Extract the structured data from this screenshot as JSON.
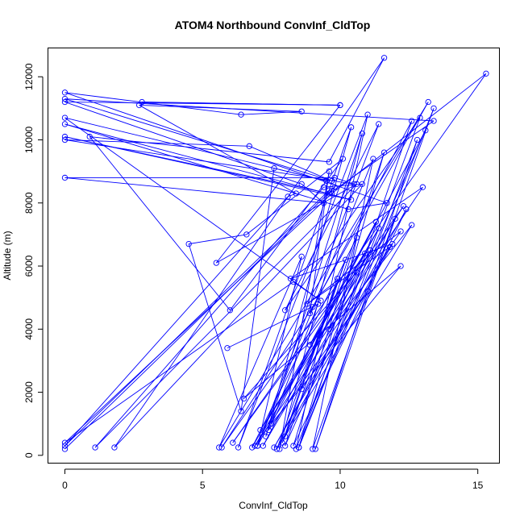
{
  "chart_data": {
    "type": "scatter",
    "title": "ATOM4 Northbound ConvInf_CldTop",
    "xlabel": "ConvInf_CldTop",
    "ylabel": "Altitude (m)",
    "xlim": [
      -0.6,
      15.8
    ],
    "ylim": [
      -260,
      12900
    ],
    "x_ticks": [
      0,
      5,
      10,
      15
    ],
    "y_ticks": [
      0,
      2000,
      4000,
      6000,
      8000,
      10000,
      12000
    ],
    "grid": false,
    "legend": "none",
    "color": "#0000ff",
    "marker": "open-circle",
    "connected_by_lines": true,
    "series": [
      {
        "x": [
          0.0,
          9.8,
          9.6,
          0.0,
          8.1,
          8.4,
          2.7,
          8.6,
          6.4,
          0.0,
          11.7,
          10.3,
          0.0,
          10.4,
          0.0,
          9.6,
          13.4,
          0.0,
          9.7,
          6.7,
          0.0,
          10.5,
          9.8,
          0.0,
          9.4,
          8.6,
          0.0,
          10.0,
          2.8,
          10.0,
          5.5,
          10.6,
          1.1,
          9.4,
          10.8,
          1.8,
          11.6,
          9.6,
          0.9,
          6.0,
          10.1,
          6.6,
          4.5,
          6.4,
          7.6,
          9.5,
          0.0,
          9.3,
          8.3,
          0.0,
          9.7,
          15.3,
          5.7,
          9.0,
          13.2,
          5.6,
          8.6,
          7.0,
          11.4,
          8.0,
          12.9,
          8.4,
          11.0,
          6.3,
          10.4,
          7.3,
          10.8,
          7.8,
          9.6,
          8.9,
          12.6,
          8.5,
          13.4,
          9.0,
          11.2,
          7.0,
          13.1,
          8.0,
          11.6,
          8.5,
          12.8,
          9.1,
          12.0,
          7.2,
          11.4,
          6.8,
          10.6,
          8.3,
          12.4,
          7.6,
          11.8,
          8.8,
          12.2,
          6.9,
          11.1,
          9.6,
          12.6,
          8.0,
          10.2,
          7.7,
          11.9,
          8.2,
          13.0,
          7.1,
          12.3,
          6.1,
          10.9,
          8.9,
          11.3,
          7.5,
          12.2,
          6.5,
          10.6,
          7.9,
          9.9,
          8.6,
          11.0,
          7.4,
          9.2,
          5.9
        ],
        "y": [
          200,
          8500,
          8400,
          300,
          8200,
          8300,
          11100,
          10900,
          10800,
          11500,
          8000,
          7800,
          10500,
          8100,
          10100,
          8300,
          10600,
          11300,
          8700,
          9800,
          10000,
          8600,
          8800,
          8800,
          8000,
          8600,
          11200,
          11100,
          11200,
          11100,
          6100,
          8600,
          250,
          8500,
          8600,
          250,
          12600,
          9300,
          10100,
          4600,
          9400,
          7000,
          6700,
          1400,
          9100,
          8700,
          10700,
          4900,
          5500,
          400,
          8300,
          12100,
          250,
          4700,
          11200,
          250,
          6300,
          300,
          10500,
          4600,
          10700,
          200,
          10800,
          250,
          10400,
          600,
          10200,
          200,
          9000,
          4500,
          10600,
          250,
          11000,
          200,
          9400,
          300,
          10300,
          300,
          9600,
          250,
          10000,
          200,
          7500,
          300,
          7200,
          250,
          6900,
          300,
          7800,
          250,
          6600,
          4800,
          7100,
          300,
          6500,
          4000,
          7300,
          600,
          6200,
          200,
          6700,
          5600,
          8500,
          800,
          7900,
          400,
          6400,
          3500,
          7400,
          1000,
          6000,
          1800,
          5800,
          400,
          5600,
          2100,
          5200,
          800,
          4800,
          3400
        ]
      }
    ]
  }
}
